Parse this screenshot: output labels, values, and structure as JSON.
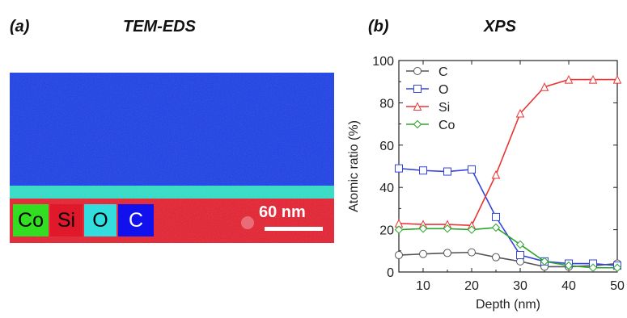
{
  "panel_a": {
    "letter": "(a)",
    "title": "TEM-EDS",
    "legend": [
      {
        "label": "Co",
        "color": "#33dd22",
        "text_color": "#000000"
      },
      {
        "label": "Si",
        "color": "#e0192a",
        "text_color": "#000000"
      },
      {
        "label": "O",
        "color": "#33dddd",
        "text_color": "#000000"
      },
      {
        "label": "C",
        "color": "#1111ee",
        "text_color": "#ffffff"
      }
    ],
    "scale_bar_label": "60 nm",
    "colors": {
      "top_layer": "#1a3ee8",
      "interface": "#2ee0c8",
      "substrate": "#e61e2e"
    }
  },
  "panel_b": {
    "letter": "(b)",
    "title": "XPS"
  },
  "chart_data": {
    "type": "line",
    "title": "XPS",
    "xlabel": "Depth (nm)",
    "ylabel": "Atomic ratio (%)",
    "xlim": [
      5,
      50
    ],
    "ylim": [
      0,
      100
    ],
    "xticks": [
      10,
      20,
      30,
      40,
      50
    ],
    "yticks": [
      0,
      20,
      40,
      60,
      80,
      100
    ],
    "grid": false,
    "legend_position": "top-left",
    "x": [
      5,
      10,
      15,
      20,
      25,
      30,
      35,
      40,
      45,
      50
    ],
    "series": [
      {
        "name": "C",
        "marker": "circle",
        "color": "#555555",
        "values": [
          8,
          8.5,
          9,
          9.3,
          7,
          5,
          2.5,
          2.5,
          3,
          4
        ]
      },
      {
        "name": "O",
        "marker": "square",
        "color": "#3344dd",
        "values": [
          49,
          48,
          47.5,
          48.5,
          26,
          8,
          5,
          4,
          4,
          3
        ]
      },
      {
        "name": "Si",
        "marker": "triangle",
        "color": "#e83535",
        "values": [
          23,
          22.5,
          22.5,
          22,
          46,
          75,
          87.5,
          91,
          91,
          91
        ]
      },
      {
        "name": "Co",
        "marker": "diamond",
        "color": "#2aa52a",
        "values": [
          20,
          20.5,
          20.5,
          20,
          21,
          13,
          5,
          3,
          2,
          2
        ]
      }
    ]
  }
}
